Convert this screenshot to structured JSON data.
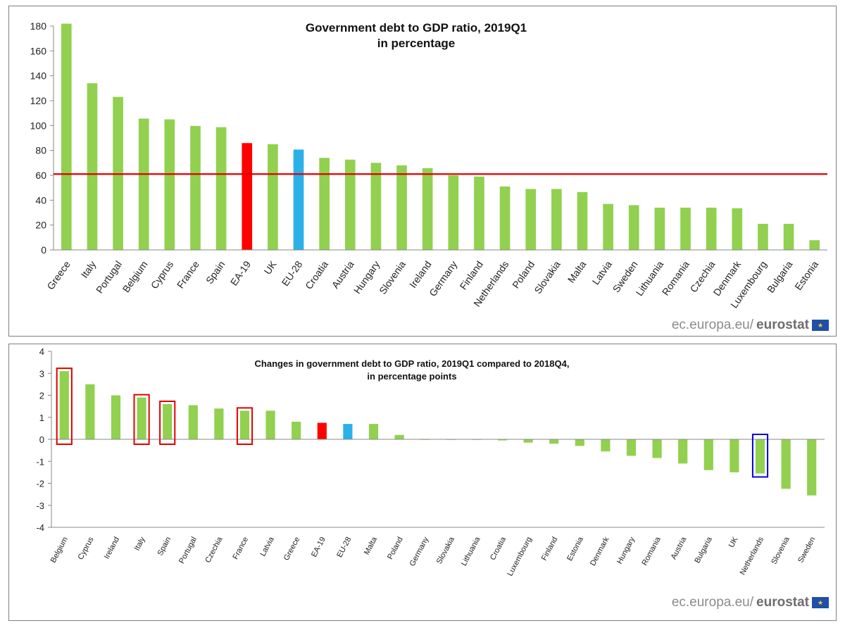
{
  "colors": {
    "default_bar": "#92d050",
    "highlight_red": "#ff0000",
    "highlight_blue": "#2bb0e8",
    "reference_line": "#e00000",
    "box_red": "#e00000",
    "box_blue": "#0000dd"
  },
  "credit": {
    "domain": "ec.europa.eu/",
    "brand": "eurostat"
  },
  "chart_data": [
    {
      "type": "bar",
      "title": "Government debt to GDP ratio, 2019Q1",
      "subtitle": "in percentage",
      "xlabel": "",
      "ylabel": "",
      "ylim": [
        0,
        180
      ],
      "yticks": [
        0,
        20,
        40,
        60,
        80,
        100,
        120,
        140,
        160,
        180
      ],
      "reference_line": 61,
      "categories": [
        "Greece",
        "Italy",
        "Portugal",
        "Belgium",
        "Cyprus",
        "France",
        "Spain",
        "EA-19",
        "UK",
        "EU-28",
        "Croatia",
        "Austria",
        "Hungary",
        "Slovenia",
        "Ireland",
        "Germany",
        "Finland",
        "Netherlands",
        "Poland",
        "Slovakia",
        "Malta",
        "Latvia",
        "Sweden",
        "Lithuania",
        "Romania",
        "Czechia",
        "Denmark",
        "Luxembourg",
        "Bulgaria",
        "Estonia"
      ],
      "values": [
        181.9,
        134.0,
        123.0,
        105.6,
        105.0,
        99.7,
        98.7,
        85.9,
        85.0,
        80.7,
        74.0,
        72.6,
        70.0,
        68.0,
        65.8,
        60.0,
        59.0,
        51.0,
        49.0,
        49.0,
        46.5,
        37.0,
        36.0,
        34.0,
        34.0,
        34.0,
        33.5,
        21.0,
        21.0,
        7.8
      ],
      "highlight": {
        "EA-19": "red",
        "EU-28": "blue"
      }
    },
    {
      "type": "bar",
      "title": "Changes in government debt to GDP ratio, 2019Q1 compared to 2018Q4,",
      "subtitle": "in percentage points",
      "xlabel": "",
      "ylabel": "",
      "ylim": [
        -4,
        4
      ],
      "yticks": [
        -4,
        -3,
        -2,
        -1,
        0,
        1,
        2,
        3,
        4
      ],
      "categories": [
        "Belgium",
        "Cyprus",
        "Ireland",
        "Italy",
        "Spain",
        "Portugal",
        "Czechia",
        "France",
        "Latvia",
        "Greece",
        "EA-19",
        "EU-28",
        "Malta",
        "Poland",
        "Germany",
        "Slovakia",
        "Lithuania",
        "Croatia",
        "Luxembourg",
        "Finland",
        "Estonia",
        "Denmark",
        "Hungary",
        "Romania",
        "Austria",
        "Bulgaria",
        "UK",
        "Netherlands",
        "Slovenia",
        "Sweden"
      ],
      "values": [
        3.1,
        2.5,
        2.0,
        1.9,
        1.6,
        1.55,
        1.4,
        1.3,
        1.3,
        0.8,
        0.75,
        0.7,
        0.7,
        0.2,
        0.0,
        0.0,
        0.0,
        -0.05,
        -0.15,
        -0.2,
        -0.3,
        -0.55,
        -0.75,
        -0.85,
        -1.1,
        -1.4,
        -1.5,
        -1.55,
        -2.25,
        -2.55
      ],
      "highlight": {
        "EA-19": "red",
        "EU-28": "blue"
      },
      "boxed_red": [
        "Belgium",
        "Italy",
        "Spain",
        "France"
      ],
      "boxed_blue": [
        "Netherlands"
      ]
    }
  ]
}
